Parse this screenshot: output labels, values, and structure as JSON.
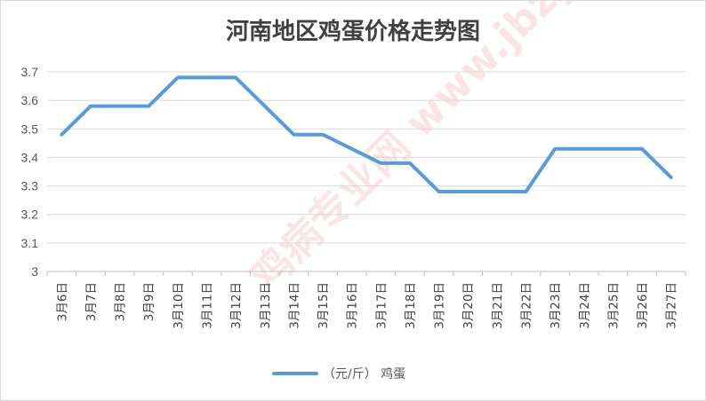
{
  "chart_data": {
    "type": "line",
    "title": "河南地区鸡蛋价格走势图",
    "categories": [
      "3月6日",
      "3月7日",
      "3月8日",
      "3月9日",
      "3月10日",
      "3月11日",
      "3月12日",
      "3月13日",
      "3月14日",
      "3月15日",
      "3月16日",
      "3月17日",
      "3月18日",
      "3月19日",
      "3月20日",
      "3月21日",
      "3月22日",
      "3月23日",
      "3月24日",
      "3月25日",
      "3月26日",
      "3月27日"
    ],
    "series": [
      {
        "name": "（元/斤） 鸡蛋",
        "color": "#5b9bd5",
        "values": [
          3.48,
          3.58,
          3.58,
          3.58,
          3.68,
          3.68,
          3.68,
          3.58,
          3.48,
          3.48,
          3.43,
          3.38,
          3.38,
          3.28,
          3.28,
          3.28,
          3.28,
          3.43,
          3.43,
          3.43,
          3.43,
          3.33
        ]
      }
    ],
    "ylim": [
      3,
      3.7
    ],
    "yticks": [
      "3",
      "3.1",
      "3.2",
      "3.3",
      "3.4",
      "3.5",
      "3.6",
      "3.7"
    ],
    "grid": true,
    "legend": "bottom"
  },
  "watermark": "鸡病专业网 www.jbzyw.com"
}
